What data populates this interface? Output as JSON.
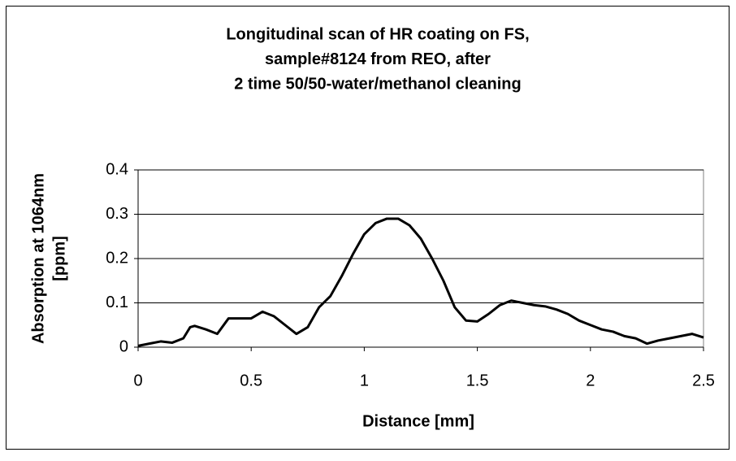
{
  "chart_data": {
    "type": "line",
    "title": [
      "Longitudinal scan of HR coating on FS,",
      "sample#8124 from REO, after",
      "2 time 50/50-water/methanol  cleaning"
    ],
    "xlabel": "Distance [mm]",
    "ylabel": [
      "Absorption at 1064nm",
      "[ppm]"
    ],
    "x": [
      0,
      0.05,
      0.1,
      0.15,
      0.2,
      0.23,
      0.25,
      0.3,
      0.35,
      0.4,
      0.45,
      0.5,
      0.55,
      0.6,
      0.65,
      0.7,
      0.75,
      0.8,
      0.85,
      0.9,
      0.95,
      1.0,
      1.05,
      1.1,
      1.15,
      1.2,
      1.25,
      1.3,
      1.35,
      1.4,
      1.45,
      1.5,
      1.55,
      1.6,
      1.65,
      1.7,
      1.75,
      1.8,
      1.85,
      1.9,
      1.95,
      2.0,
      2.05,
      2.1,
      2.15,
      2.2,
      2.25,
      2.3,
      2.35,
      2.4,
      2.45,
      2.5
    ],
    "series": [
      {
        "name": "Absorption",
        "color": "#000000",
        "values": [
          0.003,
          0.008,
          0.013,
          0.01,
          0.02,
          0.045,
          0.048,
          0.04,
          0.03,
          0.065,
          0.065,
          0.065,
          0.08,
          0.07,
          0.05,
          0.03,
          0.045,
          0.09,
          0.115,
          0.16,
          0.21,
          0.255,
          0.28,
          0.29,
          0.29,
          0.275,
          0.245,
          0.2,
          0.15,
          0.09,
          0.06,
          0.058,
          0.075,
          0.095,
          0.105,
          0.1,
          0.095,
          0.092,
          0.085,
          0.075,
          0.06,
          0.05,
          0.04,
          0.035,
          0.025,
          0.02,
          0.008,
          0.015,
          0.02,
          0.025,
          0.03,
          0.022
        ]
      }
    ],
    "xlim": [
      0,
      2.5
    ],
    "xticks": [
      0,
      0.5,
      1,
      1.5,
      2,
      2.5
    ],
    "ylim": [
      0,
      0.4
    ],
    "yticks": [
      0,
      0.1,
      0.2,
      0.3,
      0.4
    ],
    "grid": true
  }
}
